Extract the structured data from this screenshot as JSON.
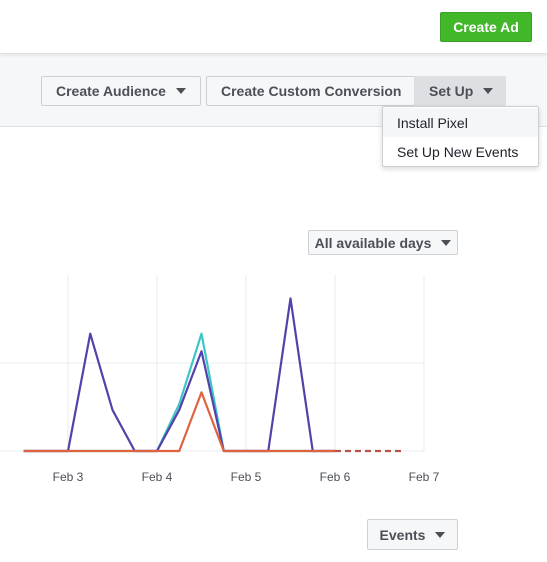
{
  "header": {
    "create_ad_label": "Create Ad"
  },
  "toolbar": {
    "create_audience_label": "Create Audience",
    "create_custom_conversion_label": "Create Custom Conversion",
    "set_up_label": "Set Up"
  },
  "setup_menu": {
    "items": [
      {
        "label": "Install Pixel"
      },
      {
        "label": "Set Up New Events"
      }
    ]
  },
  "date_filter": {
    "selected": "All available days"
  },
  "events_filter": {
    "label": "Events"
  },
  "colors": {
    "accent_green": "#42b72a",
    "series_purple": "#5243aa",
    "series_teal": "#3ec6c6",
    "series_red": "#e0623f"
  },
  "chart_data": {
    "type": "line",
    "x_ticks": [
      "Feb 3",
      "Feb 4",
      "Feb 5",
      "Feb 6",
      "Feb 7"
    ],
    "x": [
      "Feb 2 12:00",
      "Feb 2 18:00",
      "Feb 3 00:00",
      "Feb 3 06:00",
      "Feb 3 12:00",
      "Feb 3 18:00",
      "Feb 4 00:00",
      "Feb 4 06:00",
      "Feb 4 12:00",
      "Feb 4 18:00",
      "Feb 5 00:00",
      "Feb 5 06:00",
      "Feb 5 12:00",
      "Feb 5 18:00",
      "Feb 6 00:00"
    ],
    "projected_to": "Feb 7",
    "ylim": [
      0,
      3
    ],
    "grid": true,
    "series": [
      {
        "color": "#3ec6c6",
        "values": [
          0,
          0,
          0,
          0,
          0,
          0,
          0,
          0.8,
          2,
          0,
          0,
          0,
          0,
          0,
          0
        ]
      },
      {
        "color": "#5243aa",
        "values": [
          0,
          0,
          0,
          2,
          0.7,
          0,
          0,
          0.7,
          1.7,
          0,
          0,
          0,
          2.6,
          0,
          0
        ]
      },
      {
        "color": "#e0623f",
        "values": [
          0,
          0,
          0,
          0,
          0,
          0,
          0,
          0,
          1,
          0,
          0,
          0,
          0,
          0,
          0
        ]
      }
    ]
  }
}
